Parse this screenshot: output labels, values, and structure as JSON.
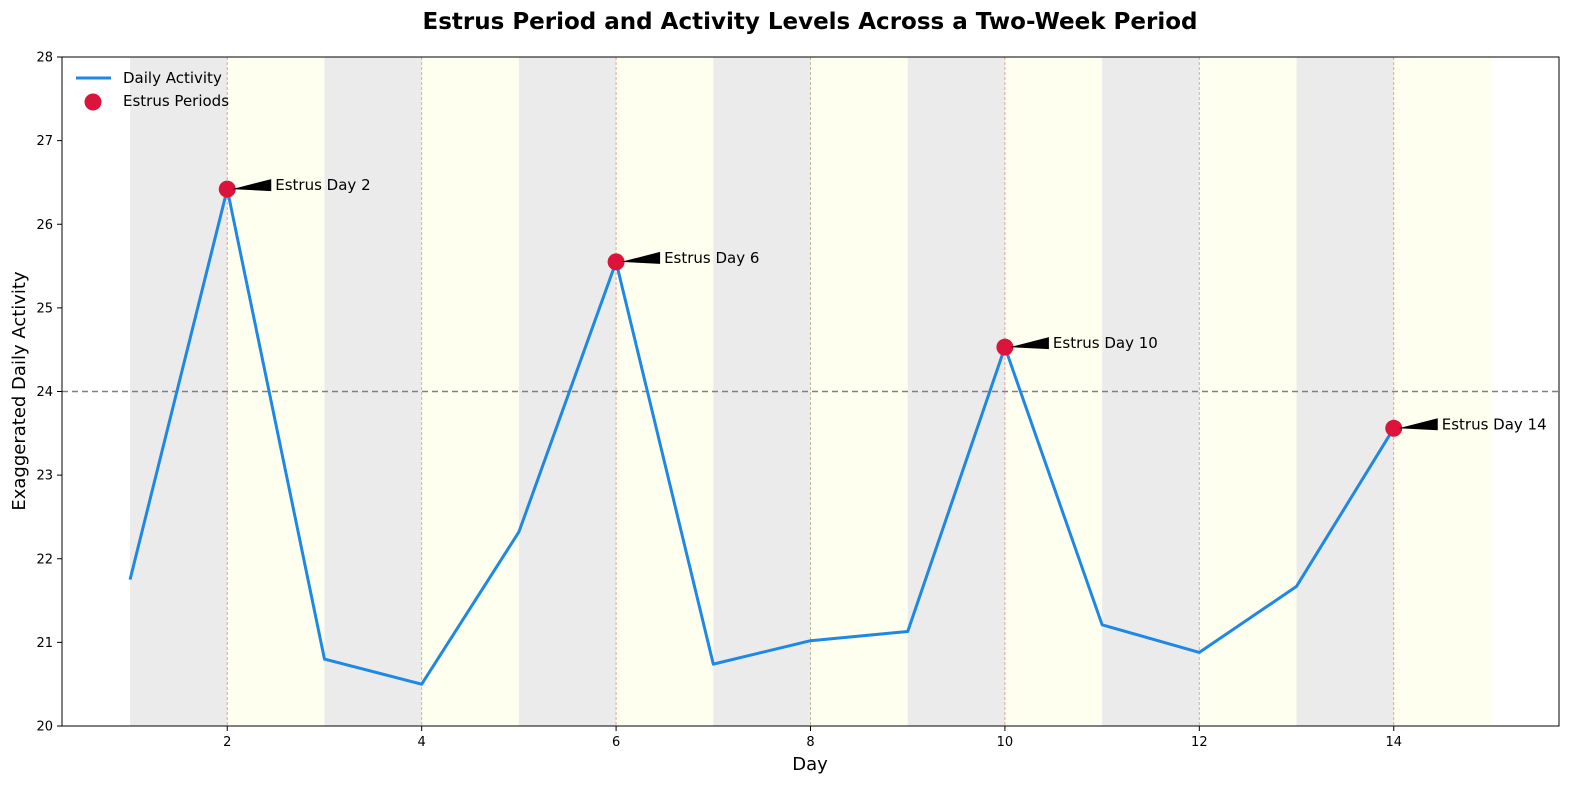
{
  "chart_data": {
    "type": "line",
    "title": "Estrus Period and Activity Levels Across a Two-Week Period",
    "xlabel": "Day",
    "ylabel": "Exaggerated Daily Activity",
    "xticks": [
      2,
      4,
      6,
      8,
      10,
      12,
      14
    ],
    "yticks": [
      20,
      21,
      22,
      23,
      24,
      25,
      26,
      27,
      28
    ],
    "xlim": [
      0.3,
      15.7
    ],
    "ylim": [
      20,
      28
    ],
    "grid": false,
    "legend": "upper-left",
    "reference_line": 24,
    "series": [
      {
        "name": "Daily Activity",
        "color": "#1e88e5",
        "x": [
          1,
          2,
          3,
          4,
          5,
          6,
          7,
          8,
          9,
          10,
          11,
          12,
          13,
          14
        ],
        "values": [
          21.75,
          26.42,
          20.8,
          20.5,
          22.32,
          25.55,
          20.74,
          21.02,
          21.13,
          24.53,
          21.21,
          20.88,
          21.67,
          23.56
        ]
      },
      {
        "name": "Estrus Periods",
        "color": "#dc143c",
        "x": [
          2,
          6,
          10,
          14
        ],
        "values": [
          26.42,
          25.55,
          24.53,
          23.56
        ]
      }
    ],
    "annotations": [
      {
        "text": "Estrus Day 2",
        "x": 2,
        "y": 26.42
      },
      {
        "text": "Estrus Day 6",
        "x": 6,
        "y": 25.55
      },
      {
        "text": "Estrus Day 10",
        "x": 10,
        "y": 24.53
      },
      {
        "text": "Estrus Day 14",
        "x": 14,
        "y": 23.56
      }
    ],
    "background_bands": [
      {
        "from": 1,
        "to": 2,
        "color": "#ebebeb"
      },
      {
        "from": 2,
        "to": 3,
        "color": "#fffff0"
      },
      {
        "from": 3,
        "to": 4,
        "color": "#ebebeb"
      },
      {
        "from": 4,
        "to": 5,
        "color": "#fffff0"
      },
      {
        "from": 5,
        "to": 6,
        "color": "#ebebeb"
      },
      {
        "from": 6,
        "to": 7,
        "color": "#fffff0"
      },
      {
        "from": 7,
        "to": 8,
        "color": "#ebebeb"
      },
      {
        "from": 8,
        "to": 9,
        "color": "#fffff0"
      },
      {
        "from": 9,
        "to": 10,
        "color": "#ebebeb"
      },
      {
        "from": 10,
        "to": 11,
        "color": "#fffff0"
      },
      {
        "from": 11,
        "to": 12,
        "color": "#ebebeb"
      },
      {
        "from": 12,
        "to": 13,
        "color": "#fffff0"
      },
      {
        "from": 13,
        "to": 14,
        "color": "#ebebeb"
      },
      {
        "from": 14,
        "to": 15,
        "color": "#fffff0"
      }
    ],
    "vlines": [
      {
        "x": 2,
        "color": "#e8a090"
      },
      {
        "x": 4,
        "color": "#bdbd9a"
      },
      {
        "x": 6,
        "color": "#e8a090"
      },
      {
        "x": 8,
        "color": "#bdbd9a"
      },
      {
        "x": 10,
        "color": "#e8a090"
      },
      {
        "x": 12,
        "color": "#bdbd9a"
      },
      {
        "x": 14,
        "color": "#e8a090"
      }
    ]
  }
}
